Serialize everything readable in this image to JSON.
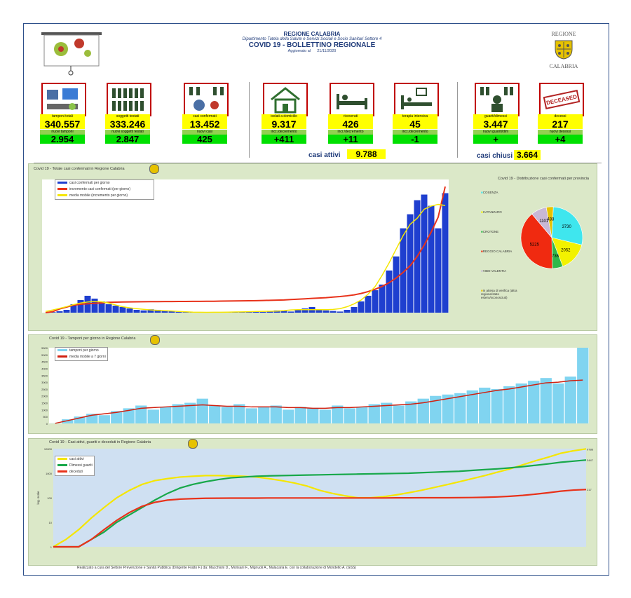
{
  "header": {
    "region": "REGIONE CALABRIA",
    "department": "Dipartimento Tutela della Salute e Servizi Sociali e Socio Sanitari  Settore 4",
    "title": "COVID 19 - BOLLETTINO REGIONALE",
    "updated_label": "Aggiornato al",
    "updated_date": "21/11/2020",
    "logo_top": "REGIONE",
    "logo_bottom": "CALABRIA"
  },
  "tiles": [
    {
      "label": "tamponi totali",
      "value": "340.557",
      "label2": "nuovi tamponi",
      "value2": "2.954",
      "icon": "laboratory-icon"
    },
    {
      "label": "soggetti testati",
      "value": "333.246",
      "label2": "nuovi soggetti testati",
      "value2": "2.847",
      "icon": "people-icon"
    },
    {
      "label": "casi confermati",
      "value": "13.452",
      "label2": "nuovi casi",
      "value2": "425",
      "icon": "virus-people-icon"
    },
    {
      "label": "isolati a domicilio",
      "value": "9.317",
      "label2": "incr./decremento",
      "value2": "+411",
      "icon": "house-icon"
    },
    {
      "label": "ricoverati",
      "value": "426",
      "label2": "incr./decremento",
      "value2": "+11",
      "icon": "hospital-bed-icon"
    },
    {
      "label": "terapia intensiva",
      "value": "45",
      "label2": "incr./decremento",
      "value2": "-1",
      "icon": "icu-bed-icon"
    },
    {
      "label": "guariti/dimessi",
      "value": "3.447",
      "label2": "nuovi guariti/dim",
      "value2": "+",
      "icon": "recovered-icon"
    },
    {
      "label": "decessi",
      "value": "217",
      "label2": "nuovi decessi",
      "value2": "+4",
      "icon": "deceased-stamp-icon"
    }
  ],
  "stamp_text": "DECEASED",
  "summary": {
    "active_label": "casi attivi",
    "active_value": "9.788",
    "closed_label": "casi chiusi",
    "closed_value": "3.664"
  },
  "chart1": {
    "title": "Covid 19 - Totale casi confermati in Regione Calabria",
    "legend": [
      "casi confermati per giorno",
      "incremento casi confermati (per giorno)",
      "media mobile (incremento per giorno)"
    ],
    "colors": {
      "bars": "#1f3fcf",
      "cumulative": "#e8321a",
      "moving": "#f5e600"
    }
  },
  "pie": {
    "title": "Covid 19 - Distribuzione casi confermati per provincia",
    "labels": [
      "COSENZA",
      "CATANZARO",
      "CROTONE",
      "REGGIO CALABRIA",
      "VIBO VALENTIA",
      "in attesa di verifica (altra regione/stato estero/sconosciuti)"
    ],
    "values_text": [
      "3730",
      "2052",
      "736",
      "5225",
      "1101",
      "488"
    ]
  },
  "chart2": {
    "title": "Covid 19 - Tamponi per giorno in Regione Calabria",
    "legend": [
      "tamponi per giorno",
      "media mobile a 7 giorni"
    ],
    "yticks": [
      "5500",
      "5000",
      "4500",
      "4000",
      "3500",
      "3000",
      "2500",
      "2000",
      "1500",
      "1000",
      "500",
      "0"
    ]
  },
  "chart3": {
    "title": "Covid 19 - Casi attivi, guariti e deceduti in Regione Calabria",
    "legend": [
      "casi attivi",
      "Dimessi guariti",
      "deceduti"
    ],
    "ylabel": "log. scale",
    "yticks": [
      "10000",
      "1000",
      "100",
      "10",
      "1"
    ],
    "end_labels": [
      "9788",
      "3447",
      "217"
    ]
  },
  "footer": "Realizzato a cura del Settore Prevenzione e Sanità Pubblica (Dirigente Fratto F.) da:   Macchioni D., Morisani F., Mignuoli A., Malacaria E. con la collaborazione di Mondello A. (GSS)",
  "chart_data": [
    {
      "type": "bar",
      "title": "Covid 19 - Totale casi confermati in Regione Calabria",
      "series": [
        {
          "name": "casi confermati per giorno",
          "values": [
            0,
            2,
            5,
            10,
            30,
            45,
            60,
            50,
            40,
            30,
            25,
            20,
            15,
            10,
            8,
            12,
            10,
            8,
            5,
            3,
            2,
            2,
            1,
            1,
            0,
            1,
            2,
            3,
            2,
            5,
            4,
            3,
            5,
            8,
            6,
            4,
            10,
            15,
            20,
            12,
            8,
            6,
            4,
            10,
            20,
            40,
            60,
            80,
            100,
            150,
            200,
            300,
            350,
            400,
            420,
            380,
            300,
            425
          ]
        },
        {
          "name": "incremento casi confermati (per giorno)",
          "values": [
            0,
            100,
            400,
            600,
            800,
            900,
            950,
            1000,
            1050,
            1100,
            1120,
            1140,
            1150,
            1160,
            1170,
            1175,
            1180,
            1185,
            1190,
            1195,
            1200,
            1205,
            1210,
            1215,
            1220,
            1230,
            1240,
            1250,
            1260,
            1270,
            1280,
            1300,
            1320,
            1340,
            1360,
            1400,
            1440,
            1480,
            1520,
            1560,
            1600,
            1660,
            1720,
            1800,
            1900,
            2050,
            2250,
            2500,
            2800,
            3200,
            3700,
            4300,
            5000,
            6000,
            7200,
            8600,
            10200,
            13452
          ]
        }
      ],
      "ylim": [
        0,
        13500
      ]
    },
    {
      "type": "pie",
      "title": "Covid 19 - Distribuzione casi confermati per provincia",
      "categories": [
        "COSENZA",
        "CATANZARO",
        "CROTONE",
        "REGGIO CALABRIA",
        "VIBO VALENTIA",
        "in attesa di verifica"
      ],
      "values": [
        3730,
        2052,
        736,
        5225,
        1101,
        488
      ],
      "colors": [
        "#3fe6ee",
        "#f2f200",
        "#2fb84a",
        "#f02a10",
        "#c8b8d6",
        "#e6c200"
      ]
    },
    {
      "type": "bar",
      "title": "Covid 19 - Tamponi per giorno in Regione Calabria",
      "series": [
        {
          "name": "tamponi per giorno",
          "values": [
            10,
            300,
            500,
            700,
            600,
            900,
            1100,
            1300,
            1000,
            1200,
            1400,
            1500,
            1800,
            1300,
            1200,
            1400,
            1100,
            1200,
            1300,
            1000,
            1200,
            1100,
            1000,
            1300,
            1100,
            1200,
            1400,
            1500,
            1300,
            1600,
            1800,
            2000,
            2100,
            2200,
            2400,
            2600,
            2500,
            2700,
            2900,
            3100,
            3300,
            2900,
            3400,
            5500
          ]
        },
        {
          "name": "media mobile a 7 giorni",
          "values": [
            10,
            200,
            400,
            600,
            700,
            800,
            950,
            1100,
            1150,
            1200,
            1250,
            1300,
            1350,
            1300,
            1250,
            1250,
            1200,
            1200,
            1200,
            1150,
            1150,
            1100,
            1100,
            1150,
            1150,
            1200,
            1250,
            1300,
            1350,
            1400,
            1500,
            1650,
            1800,
            1950,
            2100,
            2250,
            2400,
            2500,
            2650,
            2800,
            2950,
            3000,
            3100,
            3150
          ]
        }
      ],
      "ylim": [
        0,
        5500
      ]
    },
    {
      "type": "line",
      "title": "Covid 19 - Casi attivi, guariti e deceduti in Regione Calabria",
      "ylabel": "log. scale",
      "log_scale": true,
      "series": [
        {
          "name": "casi attivi",
          "values": [
            1,
            2,
            5,
            15,
            40,
            100,
            200,
            350,
            500,
            600,
            700,
            750,
            800,
            800,
            780,
            750,
            700,
            600,
            500,
            400,
            300,
            200,
            150,
            120,
            100,
            100,
            110,
            130,
            160,
            200,
            260,
            340,
            450,
            600,
            800,
            1100,
            1500,
            2200,
            3200,
            4500,
            6500,
            8200,
            9788
          ]
        },
        {
          "name": "Dimessi guariti",
          "values": [
            1,
            1,
            1,
            2,
            4,
            10,
            20,
            40,
            80,
            150,
            250,
            350,
            450,
            550,
            650,
            700,
            750,
            780,
            800,
            820,
            840,
            860,
            880,
            900,
            920,
            940,
            960,
            980,
            1000,
            1050,
            1100,
            1150,
            1200,
            1300,
            1400,
            1500,
            1650,
            1850,
            2100,
            2400,
            2800,
            3100,
            3447
          ]
        },
        {
          "name": "deceduti",
          "values": [
            1,
            1,
            1,
            2,
            5,
            12,
            25,
            45,
            65,
            80,
            88,
            92,
            95,
            96,
            97,
            97,
            97,
            98,
            98,
            98,
            98,
            98,
            98,
            98,
            98,
            98,
            98,
            99,
            99,
            100,
            100,
            100,
            101,
            102,
            104,
            108,
            115,
            125,
            140,
            160,
            185,
            205,
            217
          ]
        }
      ],
      "ylim": [
        1,
        10000
      ]
    }
  ]
}
